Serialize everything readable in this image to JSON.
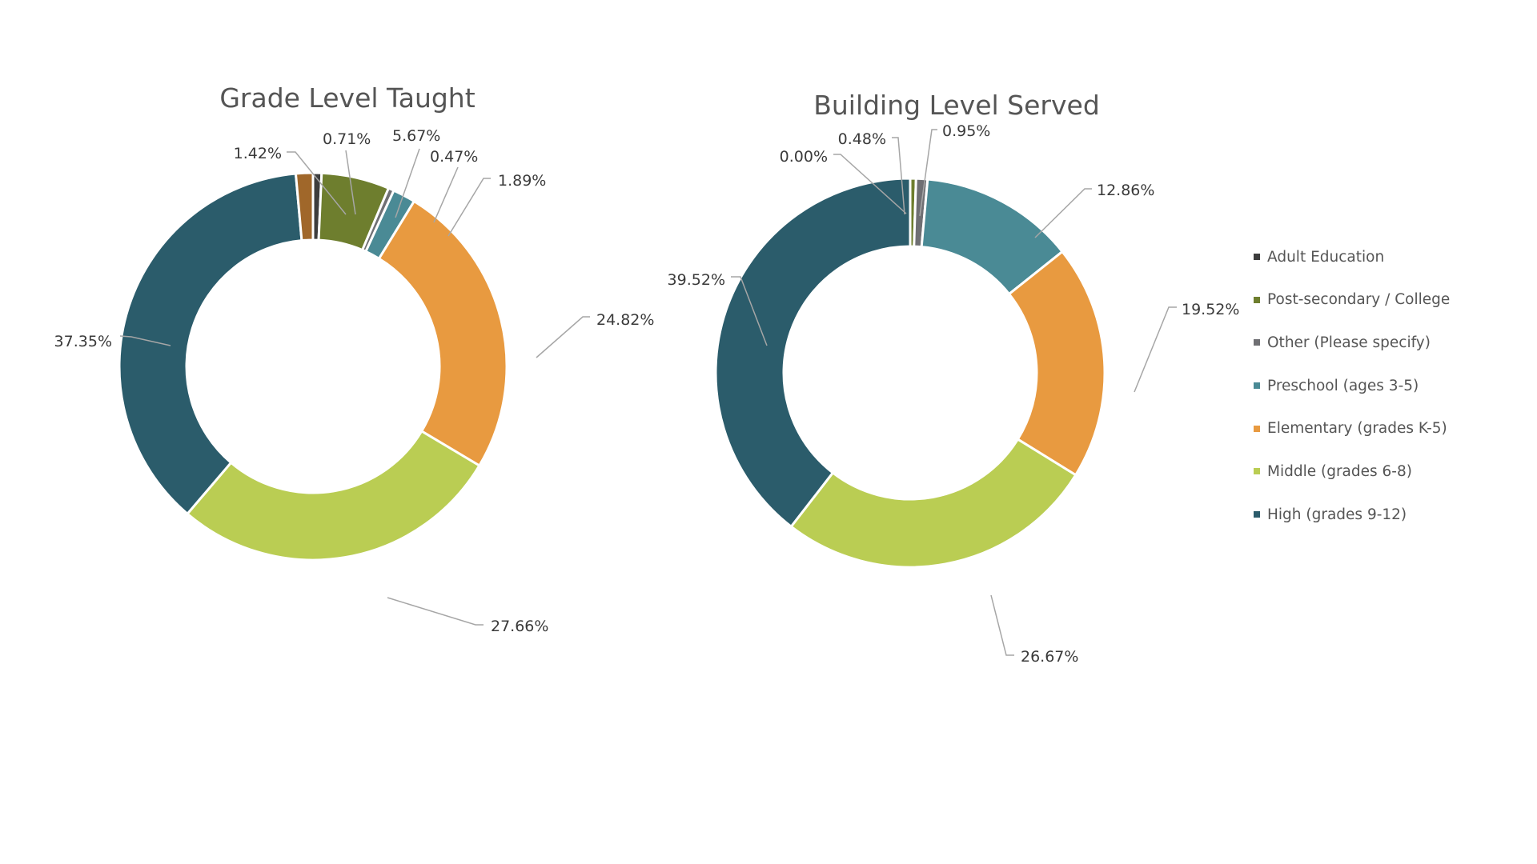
{
  "chart_data": [
    {
      "type": "pie",
      "variant": "donut",
      "title": "Grade Level Taught",
      "start": "12 o'clock",
      "direction": "clockwise",
      "slices": [
        {
          "category": "Adult Education",
          "value": 0.71,
          "label": "0.71%",
          "color": "#3d3d3d"
        },
        {
          "category": "Post-secondary / College",
          "value": 5.67,
          "label": "5.67%",
          "color": "#6e7e2e"
        },
        {
          "category": "Other (Please specify)",
          "value": 0.47,
          "label": "0.47%",
          "color": "#6f6f73"
        },
        {
          "category": "Preschool (ages 3-5)",
          "value": 1.89,
          "label": "1.89%",
          "color": "#4a8a95"
        },
        {
          "category": "Elementary (grades K-5)",
          "value": 24.82,
          "label": "24.82%",
          "color": "#e89a40"
        },
        {
          "category": "Middle (grades 6-8)",
          "value": 27.66,
          "label": "27.66%",
          "color": "#bacd53"
        },
        {
          "category": "High (grades 9-12)",
          "value": 37.35,
          "label": "37.35%",
          "color": "#2b5c6b"
        },
        {
          "category": "",
          "value": 1.42,
          "label": "1.42%",
          "color": "#a0672a"
        }
      ]
    },
    {
      "type": "pie",
      "variant": "donut",
      "title": "Building Level Served",
      "start": "12 o'clock",
      "direction": "clockwise",
      "slices": [
        {
          "category": "Adult Education",
          "value": 0.0,
          "label": "0.00%",
          "color": "#3d3d3d"
        },
        {
          "category": "Post-secondary / College",
          "value": 0.48,
          "label": "0.48%",
          "color": "#6e7e2e"
        },
        {
          "category": "Other (Please specify)",
          "value": 0.95,
          "label": "0.95%",
          "color": "#6f6f73"
        },
        {
          "category": "Preschool (ages 3-5)",
          "value": 12.86,
          "label": "12.86%",
          "color": "#4a8a95"
        },
        {
          "category": "Elementary (grades K-5)",
          "value": 19.52,
          "label": "19.52%",
          "color": "#e89a40"
        },
        {
          "category": "Middle (grades 6-8)",
          "value": 26.67,
          "label": "26.67%",
          "color": "#bacd53"
        },
        {
          "category": "High (grades 9-12)",
          "value": 39.52,
          "label": "39.52%",
          "color": "#2b5c6b"
        }
      ]
    }
  ],
  "legend": {
    "placement": "right",
    "items": [
      {
        "label": "Adult Education",
        "color": "#3d3d3d"
      },
      {
        "label": "Post-secondary / College",
        "color": "#6e7e2e"
      },
      {
        "label": "Other (Please specify)",
        "color": "#6f6f73"
      },
      {
        "label": "Preschool (ages 3-5)",
        "color": "#4a8a95"
      },
      {
        "label": "Elementary (grades K-5)",
        "color": "#e89a40"
      },
      {
        "label": "Middle (grades 6-8)",
        "color": "#bacd53"
      },
      {
        "label": "High (grades 9-12)",
        "color": "#2b5c6b"
      }
    ]
  }
}
